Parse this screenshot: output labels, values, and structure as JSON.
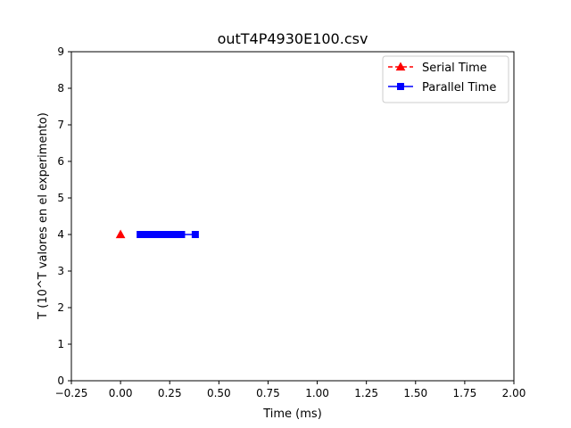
{
  "chart_data": {
    "type": "scatter",
    "title": "outT4P4930E100.csv",
    "xlabel": "Time (ms)",
    "ylabel": "T (10^T valores en el experimento)",
    "xlim": [
      -0.25,
      2.0
    ],
    "ylim": [
      0,
      9
    ],
    "xticks": [
      -0.25,
      0.0,
      0.25,
      0.5,
      0.75,
      1.0,
      1.25,
      1.5,
      1.75,
      2.0
    ],
    "xtick_labels": [
      "−0.25",
      "0.00",
      "0.25",
      "0.50",
      "0.75",
      "1.00",
      "1.25",
      "1.50",
      "1.75",
      "2.00"
    ],
    "yticks": [
      0,
      1,
      2,
      3,
      4,
      5,
      6,
      7,
      8,
      9
    ],
    "ytick_labels": [
      "0",
      "1",
      "2",
      "3",
      "4",
      "5",
      "6",
      "7",
      "8",
      "9"
    ],
    "grid": false,
    "legend_position": "top-right",
    "series": [
      {
        "name": "Serial Time",
        "color": "#ff0000",
        "marker": "triangle",
        "linestyle": "dashed",
        "x": [
          0.0
        ],
        "y": [
          4
        ]
      },
      {
        "name": "Parallel Time",
        "color": "#0000ff",
        "marker": "square",
        "linestyle": "solid",
        "x": [
          0.1,
          0.11,
          0.12,
          0.13,
          0.14,
          0.15,
          0.16,
          0.17,
          0.18,
          0.19,
          0.2,
          0.21,
          0.22,
          0.24,
          0.25,
          0.27,
          0.29,
          0.31,
          0.38
        ],
        "y": [
          4,
          4,
          4,
          4,
          4,
          4,
          4,
          4,
          4,
          4,
          4,
          4,
          4,
          4,
          4,
          4,
          4,
          4,
          4
        ]
      }
    ]
  }
}
